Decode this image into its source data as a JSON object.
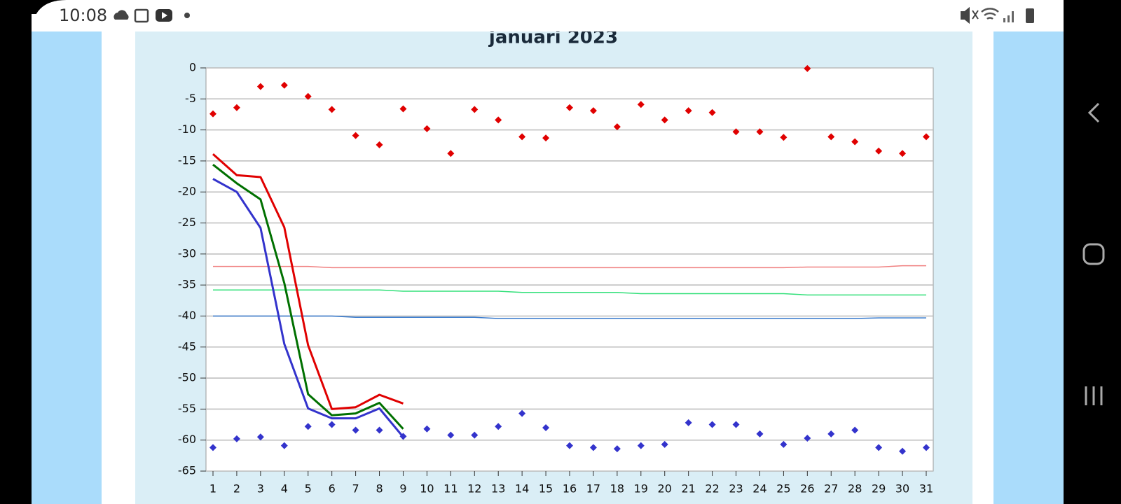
{
  "status_bar": {
    "time": "10:08"
  },
  "chart_data": {
    "type": "line",
    "title": "januari 2023",
    "categories": [
      "1",
      "2",
      "3",
      "4",
      "5",
      "6",
      "7",
      "8",
      "9",
      "10",
      "11",
      "12",
      "13",
      "14",
      "15",
      "16",
      "17",
      "18",
      "19",
      "20",
      "21",
      "22",
      "23",
      "24",
      "25",
      "26",
      "27",
      "28",
      "29",
      "30",
      "31"
    ],
    "ylim": [
      -65,
      0
    ],
    "yticks": [
      0,
      -5,
      -10,
      -15,
      -20,
      -25,
      -30,
      -35,
      -40,
      -45,
      -50,
      -55,
      -60,
      -65
    ],
    "grid": true,
    "series": [
      {
        "color": "#e00000",
        "mode": "markers",
        "values": [
          -7.4,
          -6.4,
          -3.0,
          -2.8,
          -4.6,
          -6.7,
          -10.9,
          -12.4,
          -6.6,
          -9.8,
          -13.8,
          -6.7,
          -8.4,
          -11.1,
          -11.3,
          -6.4,
          -6.9,
          -9.5,
          -5.9,
          -8.4,
          -6.9,
          -7.2,
          -10.3,
          -10.3,
          -11.2,
          -0.1,
          -11.1,
          -11.9,
          -13.4,
          -13.8,
          -11.1
        ]
      },
      {
        "color": "#3333cc",
        "mode": "markers",
        "values": [
          -61.2,
          -59.8,
          -59.5,
          -60.9,
          -57.8,
          -57.5,
          -58.4,
          -58.4,
          -59.4,
          -58.2,
          -59.2,
          -59.2,
          -57.8,
          -55.7,
          -58.0,
          -60.9,
          -61.2,
          -61.4,
          -60.9,
          -60.7,
          -57.2,
          -57.5,
          -57.5,
          -59.0,
          -60.7,
          -59.7,
          -59.0,
          -58.4,
          -61.2,
          -61.8,
          -61.2
        ]
      },
      {
        "color": "#f08080",
        "mode": "lines",
        "width": 1.5,
        "values": [
          -32.0,
          -32.0,
          -32.0,
          -32.0,
          -32.0,
          -32.2,
          -32.2,
          -32.2,
          -32.2,
          -32.2,
          -32.2,
          -32.2,
          -32.2,
          -32.2,
          -32.2,
          -32.2,
          -32.2,
          -32.2,
          -32.2,
          -32.2,
          -32.2,
          -32.2,
          -32.2,
          -32.2,
          -32.2,
          -32.1,
          -32.1,
          -32.1,
          -32.1,
          -31.9,
          -31.9
        ]
      },
      {
        "color": "#33e07a",
        "mode": "lines",
        "width": 1.5,
        "values": [
          -35.8,
          -35.8,
          -35.8,
          -35.8,
          -35.8,
          -35.8,
          -35.8,
          -35.8,
          -36.0,
          -36.0,
          -36.0,
          -36.0,
          -36.0,
          -36.2,
          -36.2,
          -36.2,
          -36.2,
          -36.2,
          -36.4,
          -36.4,
          -36.4,
          -36.4,
          -36.4,
          -36.4,
          -36.4,
          -36.6,
          -36.6,
          -36.6,
          -36.6,
          -36.6,
          -36.6
        ]
      },
      {
        "color": "#3377cc",
        "mode": "lines",
        "width": 1.5,
        "values": [
          -40.0,
          -40.0,
          -40.0,
          -40.0,
          -40.0,
          -40.0,
          -40.2,
          -40.2,
          -40.2,
          -40.2,
          -40.2,
          -40.2,
          -40.4,
          -40.4,
          -40.4,
          -40.4,
          -40.4,
          -40.4,
          -40.4,
          -40.4,
          -40.4,
          -40.4,
          -40.4,
          -40.4,
          -40.4,
          -40.4,
          -40.4,
          -40.4,
          -40.3,
          -40.3,
          -40.3
        ]
      },
      {
        "color": "#e00000",
        "mode": "lines",
        "width": 3,
        "values": [
          -13.9,
          -17.3,
          -17.6,
          -25.7,
          -44.7,
          -55.0,
          -54.7,
          -52.7,
          -54.1,
          null,
          null,
          null,
          null,
          null,
          null,
          null,
          null,
          null,
          null,
          null,
          null,
          null,
          null,
          null,
          null,
          null,
          null,
          null,
          null,
          null,
          null
        ]
      },
      {
        "color": "#007000",
        "mode": "lines",
        "width": 3,
        "values": [
          -15.6,
          -18.6,
          -21.2,
          -34.7,
          -52.6,
          -56.0,
          -55.7,
          -54.0,
          -58.2,
          null,
          null,
          null,
          null,
          null,
          null,
          null,
          null,
          null,
          null,
          null,
          null,
          null,
          null,
          null,
          null,
          null,
          null,
          null,
          null,
          null,
          null
        ]
      },
      {
        "color": "#3333cc",
        "mode": "lines",
        "width": 3,
        "values": [
          -17.9,
          -20.0,
          -25.8,
          -44.5,
          -54.9,
          -56.5,
          -56.5,
          -54.9,
          -59.5,
          null,
          null,
          null,
          null,
          null,
          null,
          null,
          null,
          null,
          null,
          null,
          null,
          null,
          null,
          null,
          null,
          null,
          null,
          null,
          null,
          null,
          null
        ]
      }
    ]
  }
}
